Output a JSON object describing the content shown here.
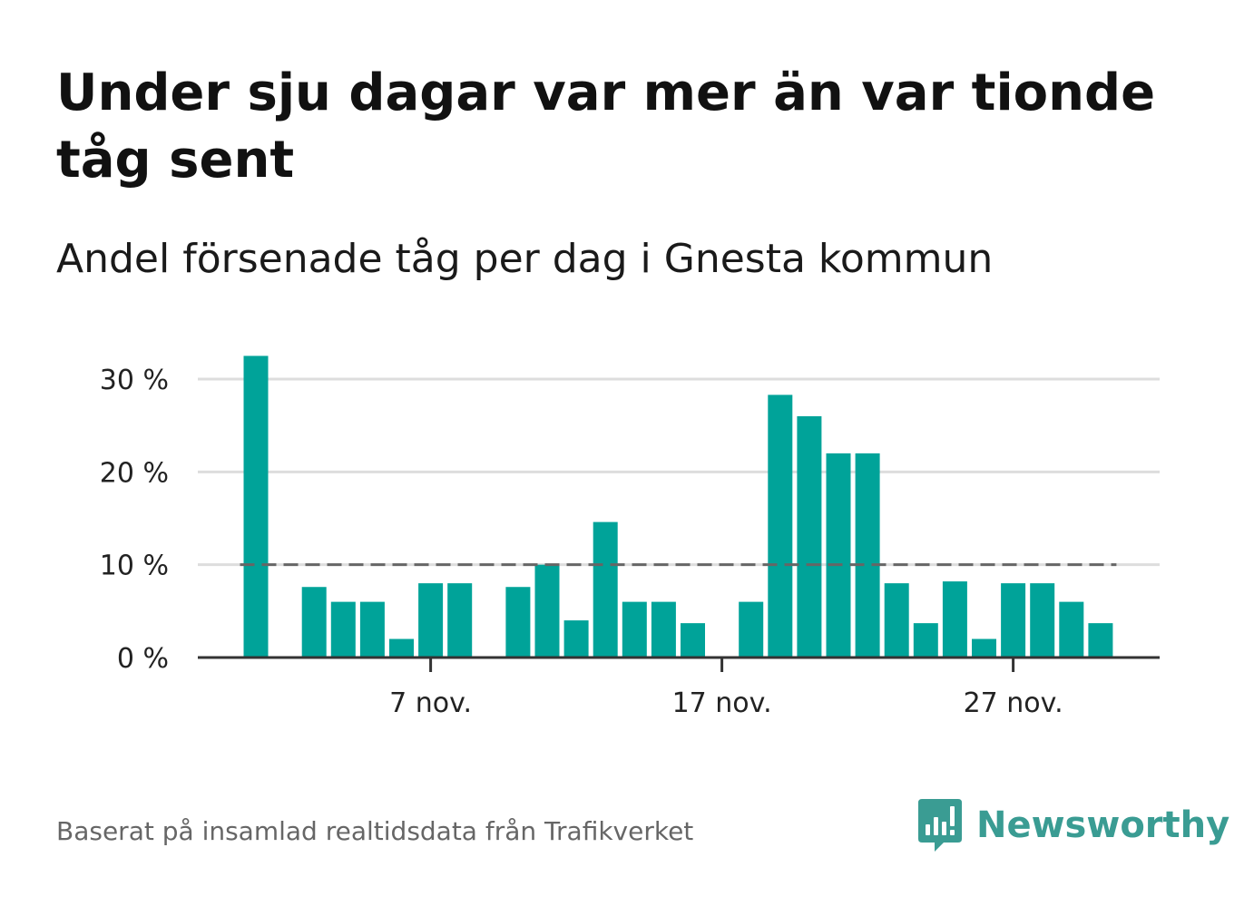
{
  "title": "Under sju dagar var mer än var tionde tåg sent",
  "subtitle": "Andel försenade tåg per dag i Gnesta kommun",
  "source": "Baserat på insamlad realtidsdata från Trafikverket",
  "brand": "Newsworthy",
  "colors": {
    "bar": "#00a399",
    "reference_line": "#666666",
    "grid": "#dddddd",
    "axis": "#333333",
    "brand": "#3a9c93"
  },
  "chart_data": {
    "type": "bar",
    "categories": [
      "1 nov.",
      "2 nov.",
      "3 nov.",
      "4 nov.",
      "5 nov.",
      "6 nov.",
      "7 nov.",
      "8 nov.",
      "9 nov.",
      "10 nov.",
      "11 nov.",
      "12 nov.",
      "13 nov.",
      "14 nov.",
      "15 nov.",
      "16 nov.",
      "17 nov.",
      "18 nov.",
      "19 nov.",
      "20 nov.",
      "21 nov.",
      "22 nov.",
      "23 nov.",
      "24 nov.",
      "25 nov.",
      "26 nov.",
      "27 nov.",
      "28 nov.",
      "29 nov.",
      "30 nov."
    ],
    "values": [
      32.5,
      null,
      7.6,
      6.0,
      6.0,
      2.0,
      8.0,
      8.0,
      null,
      7.6,
      10.0,
      4.0,
      14.6,
      6.0,
      6.0,
      3.7,
      null,
      6.0,
      28.3,
      26.0,
      22.0,
      22.0,
      8.0,
      3.7,
      8.2,
      2.0,
      8.0,
      8.0,
      6.0,
      3.7
    ],
    "reference_line": 10,
    "ylim": [
      0,
      30
    ],
    "yticks": [
      0,
      10,
      20,
      30
    ],
    "ytick_labels": [
      "0 %",
      "10 %",
      "20 %",
      "30 %"
    ],
    "xticks": [
      "7 nov.",
      "17 nov.",
      "27 nov."
    ],
    "grid": true
  }
}
